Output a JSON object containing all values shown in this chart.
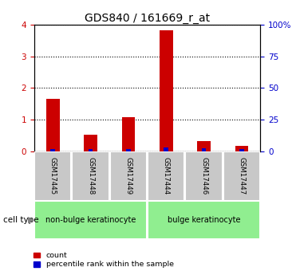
{
  "title": "GDS840 / 161669_r_at",
  "samples": [
    "GSM17445",
    "GSM17448",
    "GSM17449",
    "GSM17444",
    "GSM17446",
    "GSM17447"
  ],
  "count_values": [
    1.65,
    0.52,
    1.08,
    3.82,
    0.32,
    0.18
  ],
  "percentile_values": [
    2.0,
    1.5,
    1.5,
    3.0,
    2.5,
    2.0
  ],
  "ylim_left": [
    0,
    4
  ],
  "ylim_right": [
    0,
    100
  ],
  "yticks_left": [
    0,
    1,
    2,
    3,
    4
  ],
  "yticks_right": [
    0,
    25,
    50,
    75,
    100
  ],
  "yticklabels_right": [
    "0",
    "25",
    "50",
    "75",
    "100%"
  ],
  "group1_label": "non-bulge keratinocyte",
  "group2_label": "bulge keratinocyte",
  "group1_indices": [
    0,
    1,
    2
  ],
  "group2_indices": [
    3,
    4,
    5
  ],
  "cell_type_label": "cell type",
  "legend_count_label": "count",
  "legend_percentile_label": "percentile rank within the sample",
  "count_color": "#cc0000",
  "percentile_color": "#0000cc",
  "group1_color": "#90ee90",
  "group2_color": "#90ee90",
  "sample_box_color": "#c8c8c8",
  "title_fontsize": 10,
  "tick_fontsize": 7.5,
  "label_fontsize": 7.5
}
